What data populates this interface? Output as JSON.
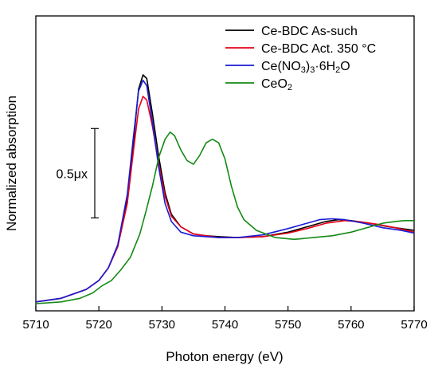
{
  "chart_data": {
    "type": "line",
    "xlabel": "Photon energy (eV)",
    "ylabel": "Normalized absorption",
    "xlim": [
      5710,
      5770
    ],
    "ylim": [
      0,
      1.65
    ],
    "x_ticks": [
      "5710",
      "5720",
      "5730",
      "5740",
      "5750",
      "5760",
      "5770"
    ],
    "y_ticks": [],
    "scale_bar": {
      "label": "0.5μx",
      "value": 0.5
    },
    "legend": "top-right",
    "series": [
      {
        "name": "Ce-BDC As-such",
        "label_parts": [
          "Ce-BDC As-such"
        ],
        "color": "#000000",
        "points": [
          [
            5710,
            0.05
          ],
          [
            5714,
            0.07
          ],
          [
            5718,
            0.12
          ],
          [
            5720,
            0.17
          ],
          [
            5721.5,
            0.24
          ],
          [
            5723,
            0.36
          ],
          [
            5724.5,
            0.62
          ],
          [
            5725.5,
            0.95
          ],
          [
            5726.3,
            1.24
          ],
          [
            5727,
            1.32
          ],
          [
            5727.6,
            1.3
          ],
          [
            5728.5,
            1.1
          ],
          [
            5729.5,
            0.86
          ],
          [
            5730.5,
            0.66
          ],
          [
            5731.5,
            0.54
          ],
          [
            5733,
            0.47
          ],
          [
            5735,
            0.43
          ],
          [
            5737,
            0.42
          ],
          [
            5739,
            0.415
          ],
          [
            5742,
            0.41
          ],
          [
            5746,
            0.415
          ],
          [
            5750,
            0.44
          ],
          [
            5753,
            0.47
          ],
          [
            5756,
            0.5
          ],
          [
            5758,
            0.51
          ],
          [
            5760,
            0.505
          ],
          [
            5763,
            0.49
          ],
          [
            5766,
            0.47
          ],
          [
            5768,
            0.46
          ],
          [
            5770,
            0.45
          ]
        ]
      },
      {
        "name": "Ce-BDC Act. 350 °C",
        "label_parts": [
          "Ce-BDC Act. 350 °C"
        ],
        "color": "#e8001a",
        "points": [
          [
            5710,
            0.05
          ],
          [
            5714,
            0.07
          ],
          [
            5718,
            0.12
          ],
          [
            5720,
            0.17
          ],
          [
            5721.5,
            0.24
          ],
          [
            5723,
            0.36
          ],
          [
            5724.5,
            0.6
          ],
          [
            5725.5,
            0.9
          ],
          [
            5726.3,
            1.13
          ],
          [
            5727,
            1.2
          ],
          [
            5727.6,
            1.18
          ],
          [
            5728.5,
            1.03
          ],
          [
            5729.5,
            0.82
          ],
          [
            5730.5,
            0.64
          ],
          [
            5731.5,
            0.53
          ],
          [
            5733,
            0.47
          ],
          [
            5735,
            0.43
          ],
          [
            5737,
            0.42
          ],
          [
            5739,
            0.41
          ],
          [
            5742,
            0.41
          ],
          [
            5746,
            0.415
          ],
          [
            5750,
            0.435
          ],
          [
            5753,
            0.46
          ],
          [
            5756,
            0.49
          ],
          [
            5759,
            0.505
          ],
          [
            5761,
            0.5
          ],
          [
            5764,
            0.485
          ],
          [
            5767,
            0.465
          ],
          [
            5770,
            0.44
          ]
        ]
      },
      {
        "name": "Ce(NO3)3·6H2O",
        "label_parts": [
          "Ce(NO",
          "3",
          ")",
          "3",
          "·6H",
          "2",
          "O"
        ],
        "color": "#1a1ad6",
        "points": [
          [
            5710,
            0.05
          ],
          [
            5714,
            0.07
          ],
          [
            5718,
            0.12
          ],
          [
            5720,
            0.17
          ],
          [
            5721.5,
            0.24
          ],
          [
            5723,
            0.37
          ],
          [
            5724.5,
            0.65
          ],
          [
            5725.5,
            0.98
          ],
          [
            5726.3,
            1.23
          ],
          [
            5727,
            1.29
          ],
          [
            5727.6,
            1.26
          ],
          [
            5728.5,
            1.05
          ],
          [
            5729.5,
            0.8
          ],
          [
            5730.5,
            0.6
          ],
          [
            5731.5,
            0.5
          ],
          [
            5733,
            0.44
          ],
          [
            5735,
            0.42
          ],
          [
            5737,
            0.415
          ],
          [
            5739,
            0.41
          ],
          [
            5742,
            0.41
          ],
          [
            5746,
            0.425
          ],
          [
            5750,
            0.46
          ],
          [
            5753,
            0.49
          ],
          [
            5755,
            0.51
          ],
          [
            5757,
            0.515
          ],
          [
            5759,
            0.51
          ],
          [
            5762,
            0.49
          ],
          [
            5765,
            0.465
          ],
          [
            5768,
            0.45
          ],
          [
            5770,
            0.435
          ]
        ]
      },
      {
        "name": "CeO2",
        "label_parts": [
          "CeO",
          "2"
        ],
        "color": "#148a14",
        "points": [
          [
            5710,
            0.04
          ],
          [
            5714,
            0.05
          ],
          [
            5717,
            0.07
          ],
          [
            5719,
            0.1
          ],
          [
            5720.5,
            0.14
          ],
          [
            5722,
            0.17
          ],
          [
            5723.5,
            0.23
          ],
          [
            5725,
            0.3
          ],
          [
            5726.5,
            0.43
          ],
          [
            5727.5,
            0.56
          ],
          [
            5728.5,
            0.7
          ],
          [
            5729.5,
            0.86
          ],
          [
            5730.5,
            0.96
          ],
          [
            5731.3,
            1.0
          ],
          [
            5732,
            0.98
          ],
          [
            5733,
            0.9
          ],
          [
            5734,
            0.84
          ],
          [
            5735,
            0.82
          ],
          [
            5736,
            0.87
          ],
          [
            5737,
            0.94
          ],
          [
            5738,
            0.96
          ],
          [
            5739,
            0.94
          ],
          [
            5740,
            0.85
          ],
          [
            5741,
            0.7
          ],
          [
            5742,
            0.58
          ],
          [
            5743,
            0.51
          ],
          [
            5745,
            0.45
          ],
          [
            5748,
            0.41
          ],
          [
            5751,
            0.4
          ],
          [
            5754,
            0.41
          ],
          [
            5757,
            0.42
          ],
          [
            5760,
            0.44
          ],
          [
            5763,
            0.47
          ],
          [
            5765,
            0.49
          ],
          [
            5767,
            0.5
          ],
          [
            5768.5,
            0.505
          ],
          [
            5770,
            0.505
          ]
        ]
      }
    ]
  }
}
